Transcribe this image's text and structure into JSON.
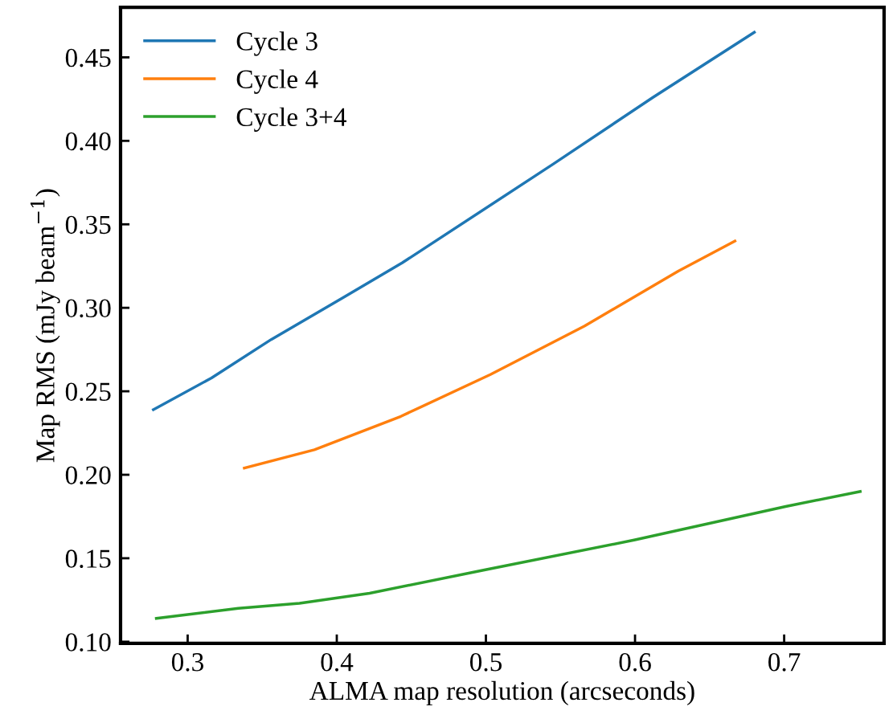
{
  "chart_data": {
    "type": "line",
    "xlabel": "ALMA map resolution (arcseconds)",
    "ylabel": "Map RMS (mJy beam$^{−1}$)",
    "xlim": [
      0.255,
      0.767
    ],
    "ylim": [
      0.099,
      0.48
    ],
    "xticks": [
      0.3,
      0.4,
      0.5,
      0.6,
      0.7
    ],
    "yticks": [
      {
        "value": 0.1,
        "label": "0.10"
      },
      0.15,
      {
        "value": 0.2,
        "label": "0.20"
      },
      0.25,
      {
        "value": 0.3,
        "label": "0.30"
      },
      0.35,
      {
        "value": 0.4,
        "label": "0.40"
      },
      0.45
    ],
    "legend": "top left",
    "grid": false,
    "series": [
      {
        "name": "Cycle 3",
        "color": "#1f77b4",
        "x": [
          0.277,
          0.316,
          0.356,
          0.404,
          0.444,
          0.545,
          0.612,
          0.68
        ],
        "values": [
          0.239,
          0.258,
          0.281,
          0.306,
          0.327,
          0.386,
          0.426,
          0.465
        ]
      },
      {
        "name": "Cycle 4",
        "color": "#ff7f0e",
        "x": [
          0.338,
          0.385,
          0.443,
          0.503,
          0.566,
          0.629,
          0.667
        ],
        "values": [
          0.204,
          0.215,
          0.235,
          0.26,
          0.289,
          0.322,
          0.34
        ]
      },
      {
        "name": "Cycle 3+4",
        "color": "#2ca02c",
        "x": [
          0.279,
          0.334,
          0.375,
          0.422,
          0.499,
          0.6,
          0.701,
          0.751
        ],
        "values": [
          0.114,
          0.12,
          0.123,
          0.129,
          0.143,
          0.161,
          0.181,
          0.19
        ]
      }
    ]
  }
}
